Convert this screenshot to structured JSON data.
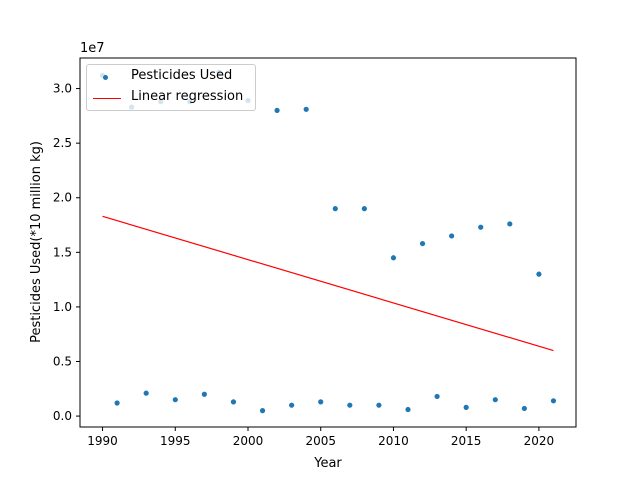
{
  "chart_data": {
    "type": "scatter",
    "title": "",
    "xlabel": "Year",
    "ylabel": "Pesticides Used(*10 million kg)",
    "y_offset_label": "1e7",
    "xlim": [
      1988.45,
      2022.55
    ],
    "ylim": [
      -1000000,
      32800000
    ],
    "x_ticks": [
      1990,
      1995,
      2000,
      2005,
      2010,
      2015,
      2020
    ],
    "y_ticks": [
      0,
      5000000,
      10000000,
      15000000,
      20000000,
      25000000,
      30000000
    ],
    "y_tick_labels": [
      "0.0",
      "0.5",
      "1.0",
      "1.5",
      "2.0",
      "2.5",
      "3.0"
    ],
    "grid": false,
    "legend_position": "upper left",
    "series": [
      {
        "name": "Pesticides Used",
        "kind": "scatter",
        "color": "#1f77b4",
        "points": [
          {
            "x": 1990,
            "y": 31200000
          },
          {
            "x": 1991,
            "y": 1200000
          },
          {
            "x": 1992,
            "y": 28300000
          },
          {
            "x": 1993,
            "y": 2100000
          },
          {
            "x": 1994,
            "y": 28800000
          },
          {
            "x": 1995,
            "y": 1500000
          },
          {
            "x": 1996,
            "y": 28800000
          },
          {
            "x": 1997,
            "y": 2000000
          },
          {
            "x": 1998,
            "y": 31500000
          },
          {
            "x": 1999,
            "y": 1300000
          },
          {
            "x": 2000,
            "y": 28900000
          },
          {
            "x": 2001,
            "y": 500000
          },
          {
            "x": 2002,
            "y": 28000000
          },
          {
            "x": 2003,
            "y": 1000000
          },
          {
            "x": 2004,
            "y": 28100000
          },
          {
            "x": 2005,
            "y": 1300000
          },
          {
            "x": 2006,
            "y": 19000000
          },
          {
            "x": 2007,
            "y": 1000000
          },
          {
            "x": 2008,
            "y": 19000000
          },
          {
            "x": 2009,
            "y": 1000000
          },
          {
            "x": 2010,
            "y": 14500000
          },
          {
            "x": 2011,
            "y": 600000
          },
          {
            "x": 2012,
            "y": 15800000
          },
          {
            "x": 2013,
            "y": 1800000
          },
          {
            "x": 2014,
            "y": 16500000
          },
          {
            "x": 2015,
            "y": 800000
          },
          {
            "x": 2016,
            "y": 17300000
          },
          {
            "x": 2017,
            "y": 1500000
          },
          {
            "x": 2018,
            "y": 17600000
          },
          {
            "x": 2019,
            "y": 700000
          },
          {
            "x": 2020,
            "y": 13000000
          },
          {
            "x": 2021,
            "y": 1400000
          }
        ]
      },
      {
        "name": "Linear regression",
        "kind": "line",
        "color": "#ff0000",
        "points": [
          {
            "x": 1990,
            "y": 18300000
          },
          {
            "x": 2021,
            "y": 6000000
          }
        ]
      }
    ]
  }
}
